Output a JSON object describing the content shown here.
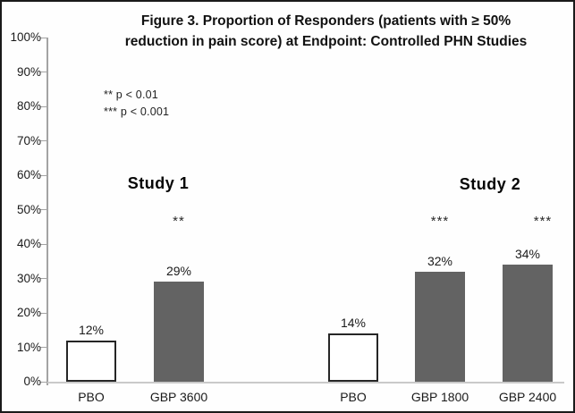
{
  "figure": {
    "title_line1": "Figure 3. Proportion of Responders (patients with ≥ 50%",
    "title_line2": "reduction in pain score) at Endpoint: Controlled PHN Studies",
    "notes": [
      "** p < 0.01",
      "*** p < 0.001"
    ],
    "group_labels": [
      "Study 1",
      "Study 2"
    ]
  },
  "chart_data": {
    "type": "bar",
    "title": "Figure 3. Proportion of Responders (patients with ≥ 50% reduction in pain score) at Endpoint: Controlled PHN Studies",
    "xlabel": "",
    "ylabel": "",
    "ylim": [
      0,
      100
    ],
    "ytick_step": 10,
    "ytick_labels": [
      "0%",
      "10%",
      "20%",
      "30%",
      "40%",
      "50%",
      "60%",
      "70%",
      "80%",
      "90%",
      "100%"
    ],
    "grid": "off",
    "legend": "none",
    "categories": [
      "PBO",
      "GBP 3600",
      "PBO",
      "GBP 1800",
      "GBP 2400"
    ],
    "values": [
      12,
      29,
      14,
      32,
      34
    ],
    "groups": [
      {
        "name": "Study 1",
        "bars": [
          {
            "category": "PBO",
            "value": 12,
            "value_label": "12%",
            "significance": "",
            "fill": "white"
          },
          {
            "category": "GBP 3600",
            "value": 29,
            "value_label": "29%",
            "significance": "**",
            "fill": "gray"
          }
        ]
      },
      {
        "name": "Study 2",
        "bars": [
          {
            "category": "PBO",
            "value": 14,
            "value_label": "14%",
            "significance": "",
            "fill": "white"
          },
          {
            "category": "GBP 1800",
            "value": 32,
            "value_label": "32%",
            "significance": "***",
            "fill": "gray"
          },
          {
            "category": "GBP 2400",
            "value": 34,
            "value_label": "34%",
            "significance": "***",
            "fill": "gray"
          }
        ]
      }
    ],
    "annotations": [
      "** p < 0.01",
      "*** p < 0.001"
    ],
    "colors": {
      "bar_fill_gray": "#636363",
      "bar_fill_white": "#ffffff",
      "bar_border": "#262626",
      "axis_color": "#a3a3a3",
      "baseline_color": "#c9c9c9",
      "text_color": "#111111",
      "frame_border": "#1a1a1a"
    }
  }
}
